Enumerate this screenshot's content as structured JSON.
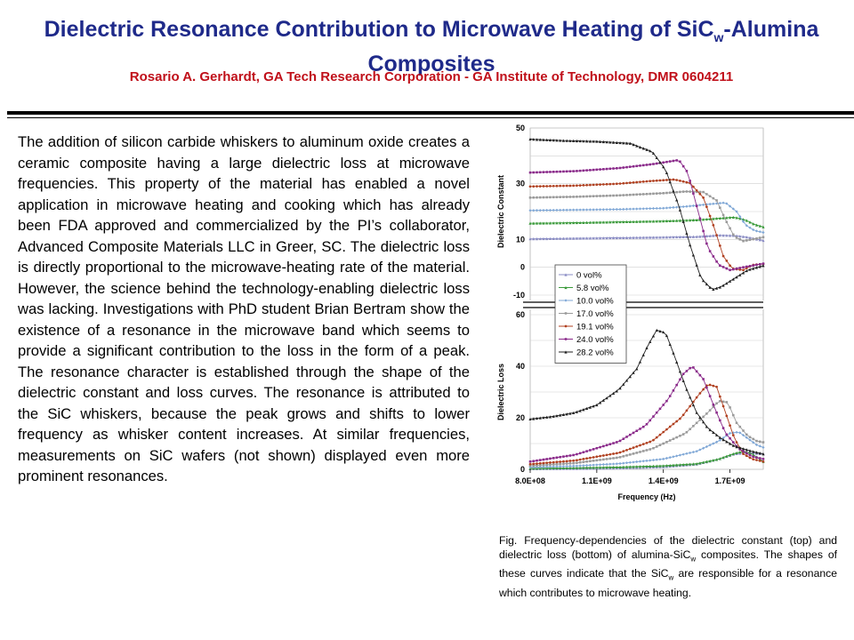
{
  "slide": {
    "title_line1_main": "Dielectric Resonance Contribution to Microwave Heating of SiC",
    "title_line1_sub": "w",
    "title_line1_tail": "-Alumina",
    "title_line2": "Composites",
    "author": "Rosario A. Gerhardt, GA Tech Research Corporation  - GA Institute of Technology, DMR 0604211",
    "body": "The addition of silicon carbide whiskers to aluminum oxide creates a ceramic composite having a large dielectric loss at microwave frequencies. This property of the material has enabled a novel application in microwave heating and cooking which has already been FDA approved and commercialized by the PI’s collaborator, Advanced Composite Materials LLC in Greer, SC. The dielectric loss is directly proportional to the microwave-heating rate of the material. However, the science behind the technology-enabling dielectric loss was lacking. Investigations with PhD student Brian Bertram show the existence of a resonance in the microwave band which seems to provide a significant contribution to the loss in the form of a peak. The resonance character is established through the shape of the dielectric constant and loss curves.  The resonance is attributed to the SiC whiskers, because the peak grows and shifts to lower frequency as whisker content increases. At similar frequencies, measurements on SiC wafers (not shown) displayed even more prominent resonances.",
    "caption_part1": "Fig. Frequency-dependencies of the dielectric constant (top) and dielectric loss (bottom) of alumina-SiC",
    "caption_sub1": "w",
    "caption_part2": " composites. The shapes of these curves indicate that the SiC",
    "caption_sub2": "w",
    "caption_part3": " are responsible for a resonance which contributes to microwave heating."
  },
  "colors": {
    "title": "#1f2a8a",
    "author": "#c0101a"
  },
  "chart_data": {
    "type": "line",
    "xlabel": "Frequency (Hz)",
    "x_ticks": [
      "8.0E+08",
      "1.1E+09",
      "1.4E+09",
      "1.7E+09"
    ],
    "x_range": [
      800000000,
      1850000000
    ],
    "legend_placement": "center-left",
    "panels": [
      {
        "name": "top",
        "ylabel": "Dielectric Constant",
        "ylim": [
          -10,
          50
        ],
        "y_ticks": [
          "50",
          "30",
          "10",
          "0",
          "-10"
        ],
        "grid": true
      },
      {
        "name": "bottom",
        "ylabel": "Dielectric Loss",
        "ylim": [
          0,
          60
        ],
        "y_ticks": [
          "60",
          "40",
          "20",
          "0"
        ],
        "grid": true
      }
    ],
    "series": [
      {
        "name": "0 vol%",
        "color": "#8a8cc4",
        "marker": "triangle",
        "constant": [
          [
            800000000.0,
            10.2
          ],
          [
            1000000000.0,
            10.4
          ],
          [
            1200000000.0,
            10.6
          ],
          [
            1400000000.0,
            10.8
          ],
          [
            1550000000.0,
            11.0
          ],
          [
            1650000000.0,
            11.5
          ],
          [
            1720000000.0,
            11.4
          ],
          [
            1780000000.0,
            10.8
          ],
          [
            1850000000.0,
            9.6
          ]
        ],
        "loss": [
          [
            800000000.0,
            0.2
          ],
          [
            1000000000.0,
            0.3
          ],
          [
            1200000000.0,
            0.5
          ],
          [
            1400000000.0,
            1.0
          ],
          [
            1550000000.0,
            2.0
          ],
          [
            1650000000.0,
            4.0
          ],
          [
            1720000000.0,
            6.0
          ],
          [
            1780000000.0,
            6.5
          ],
          [
            1850000000.0,
            6.0
          ]
        ]
      },
      {
        "name": "5.8 vol%",
        "color": "#3a9a3a",
        "marker": "triangle",
        "constant": [
          [
            800000000.0,
            15.8
          ],
          [
            1000000000.0,
            16.0
          ],
          [
            1200000000.0,
            16.3
          ],
          [
            1400000000.0,
            16.6
          ],
          [
            1550000000.0,
            17.0
          ],
          [
            1650000000.0,
            17.6
          ],
          [
            1720000000.0,
            18.0
          ],
          [
            1770000000.0,
            17.0
          ],
          [
            1810000000.0,
            15.4
          ],
          [
            1850000000.0,
            14.5
          ]
        ],
        "loss": [
          [
            800000000.0,
            0.4
          ],
          [
            1000000000.0,
            0.6
          ],
          [
            1200000000.0,
            0.9
          ],
          [
            1400000000.0,
            1.4
          ],
          [
            1550000000.0,
            2.2
          ],
          [
            1650000000.0,
            4.0
          ],
          [
            1720000000.0,
            6.2
          ],
          [
            1760000000.0,
            7.0
          ],
          [
            1800000000.0,
            6.0
          ],
          [
            1850000000.0,
            3.0
          ]
        ]
      },
      {
        "name": "10.0 vol%",
        "color": "#7fa7d6",
        "marker": "diamond",
        "constant": [
          [
            800000000.0,
            20.4
          ],
          [
            1000000000.0,
            20.6
          ],
          [
            1200000000.0,
            20.8
          ],
          [
            1400000000.0,
            21.2
          ],
          [
            1500000000.0,
            21.8
          ],
          [
            1600000000.0,
            22.6
          ],
          [
            1680000000.0,
            23.2
          ],
          [
            1730000000.0,
            20.0
          ],
          [
            1770000000.0,
            15.2
          ],
          [
            1810000000.0,
            13.2
          ],
          [
            1850000000.0,
            12.5
          ]
        ],
        "loss": [
          [
            800000000.0,
            0.8
          ],
          [
            1000000000.0,
            1.3
          ],
          [
            1200000000.0,
            2.2
          ],
          [
            1400000000.0,
            4.0
          ],
          [
            1550000000.0,
            7.0
          ],
          [
            1650000000.0,
            11.0
          ],
          [
            1700000000.0,
            14.0
          ],
          [
            1740000000.0,
            14.5
          ],
          [
            1780000000.0,
            12.0
          ],
          [
            1820000000.0,
            9.5
          ],
          [
            1850000000.0,
            8.5
          ]
        ]
      },
      {
        "name": "17.0 vol%",
        "color": "#9a9a9a",
        "marker": "square",
        "constant": [
          [
            800000000.0,
            25.0
          ],
          [
            1000000000.0,
            25.3
          ],
          [
            1200000000.0,
            25.8
          ],
          [
            1400000000.0,
            26.6
          ],
          [
            1500000000.0,
            27.2
          ],
          [
            1580000000.0,
            27.0
          ],
          [
            1640000000.0,
            24.0
          ],
          [
            1680000000.0,
            17.0
          ],
          [
            1720000000.0,
            11.0
          ],
          [
            1760000000.0,
            9.4
          ],
          [
            1800000000.0,
            10.0
          ],
          [
            1850000000.0,
            10.8
          ]
        ],
        "loss": [
          [
            800000000.0,
            1.4
          ],
          [
            1000000000.0,
            2.4
          ],
          [
            1200000000.0,
            4.6
          ],
          [
            1350000000.0,
            8.0
          ],
          [
            1500000000.0,
            14.0
          ],
          [
            1600000000.0,
            22.0
          ],
          [
            1650000000.0,
            26.5
          ],
          [
            1690000000.0,
            26.0
          ],
          [
            1730000000.0,
            18.0
          ],
          [
            1780000000.0,
            13.0
          ],
          [
            1820000000.0,
            11.0
          ],
          [
            1850000000.0,
            10.5
          ]
        ]
      },
      {
        "name": "19.1 vol%",
        "color": "#b04020",
        "marker": "circle",
        "constant": [
          [
            800000000.0,
            29.0
          ],
          [
            1000000000.0,
            29.3
          ],
          [
            1200000000.0,
            30.0
          ],
          [
            1350000000.0,
            31.0
          ],
          [
            1450000000.0,
            31.5
          ],
          [
            1520000000.0,
            30.2
          ],
          [
            1580000000.0,
            25.0
          ],
          [
            1630000000.0,
            14.0
          ],
          [
            1670000000.0,
            4.0
          ],
          [
            1710000000.0,
            -0.5
          ],
          [
            1760000000.0,
            -1.0
          ],
          [
            1800000000.0,
            0.8
          ],
          [
            1850000000.0,
            1.2
          ]
        ],
        "loss": [
          [
            800000000.0,
            2.0
          ],
          [
            1000000000.0,
            3.4
          ],
          [
            1200000000.0,
            6.4
          ],
          [
            1350000000.0,
            11.0
          ],
          [
            1480000000.0,
            20.0
          ],
          [
            1560000000.0,
            29.0
          ],
          [
            1600000000.0,
            33.0
          ],
          [
            1640000000.0,
            32.0
          ],
          [
            1680000000.0,
            22.0
          ],
          [
            1720000000.0,
            12.0
          ],
          [
            1760000000.0,
            6.0
          ],
          [
            1800000000.0,
            4.0
          ],
          [
            1850000000.0,
            3.0
          ]
        ]
      },
      {
        "name": "24.0 vol%",
        "color": "#8a2a8a",
        "marker": "square",
        "constant": [
          [
            800000000.0,
            34.0
          ],
          [
            1000000000.0,
            34.5
          ],
          [
            1200000000.0,
            35.6
          ],
          [
            1350000000.0,
            37.0
          ],
          [
            1470000000.0,
            38.5
          ],
          [
            1510000000.0,
            34.0
          ],
          [
            1550000000.0,
            22.0
          ],
          [
            1600000000.0,
            7.0
          ],
          [
            1650000000.0,
            0.8
          ],
          [
            1700000000.0,
            -1.0
          ],
          [
            1760000000.0,
            0.0
          ],
          [
            1850000000.0,
            1.3
          ]
        ],
        "loss": [
          [
            800000000.0,
            3.0
          ],
          [
            1000000000.0,
            5.6
          ],
          [
            1200000000.0,
            10.8
          ],
          [
            1320000000.0,
            17.0
          ],
          [
            1420000000.0,
            27.0
          ],
          [
            1490000000.0,
            37.0
          ],
          [
            1530000000.0,
            40.0
          ],
          [
            1580000000.0,
            35.0
          ],
          [
            1630000000.0,
            24.0
          ],
          [
            1680000000.0,
            14.0
          ],
          [
            1740000000.0,
            8.0
          ],
          [
            1800000000.0,
            5.0
          ],
          [
            1850000000.0,
            4.0
          ]
        ]
      },
      {
        "name": "28.2 vol%",
        "color": "#202020",
        "marker": "triangle",
        "constant": [
          [
            800000000.0,
            46.0
          ],
          [
            950000000.0,
            45.5
          ],
          [
            1100000000.0,
            45.2
          ],
          [
            1250000000.0,
            44.5
          ],
          [
            1350000000.0,
            41.5
          ],
          [
            1410000000.0,
            35.0
          ],
          [
            1470000000.0,
            22.0
          ],
          [
            1520000000.0,
            8.0
          ],
          [
            1570000000.0,
            -4.0
          ],
          [
            1620000000.0,
            -8.0
          ],
          [
            1660000000.0,
            -7.0
          ],
          [
            1720000000.0,
            -4.0
          ],
          [
            1780000000.0,
            -1.0
          ],
          [
            1850000000.0,
            0.6
          ]
        ],
        "loss": [
          [
            800000000.0,
            19.5
          ],
          [
            900000000.0,
            20.5
          ],
          [
            1000000000.0,
            22.0
          ],
          [
            1100000000.0,
            25.0
          ],
          [
            1200000000.0,
            31.0
          ],
          [
            1280000000.0,
            39.0
          ],
          [
            1330000000.0,
            48.0
          ],
          [
            1370000000.0,
            54.0
          ],
          [
            1410000000.0,
            53.0
          ],
          [
            1450000000.0,
            44.0
          ],
          [
            1500000000.0,
            32.0
          ],
          [
            1550000000.0,
            22.0
          ],
          [
            1600000000.0,
            16.0
          ],
          [
            1660000000.0,
            12.0
          ],
          [
            1720000000.0,
            9.0
          ],
          [
            1800000000.0,
            7.0
          ],
          [
            1850000000.0,
            6.0
          ]
        ]
      }
    ]
  }
}
